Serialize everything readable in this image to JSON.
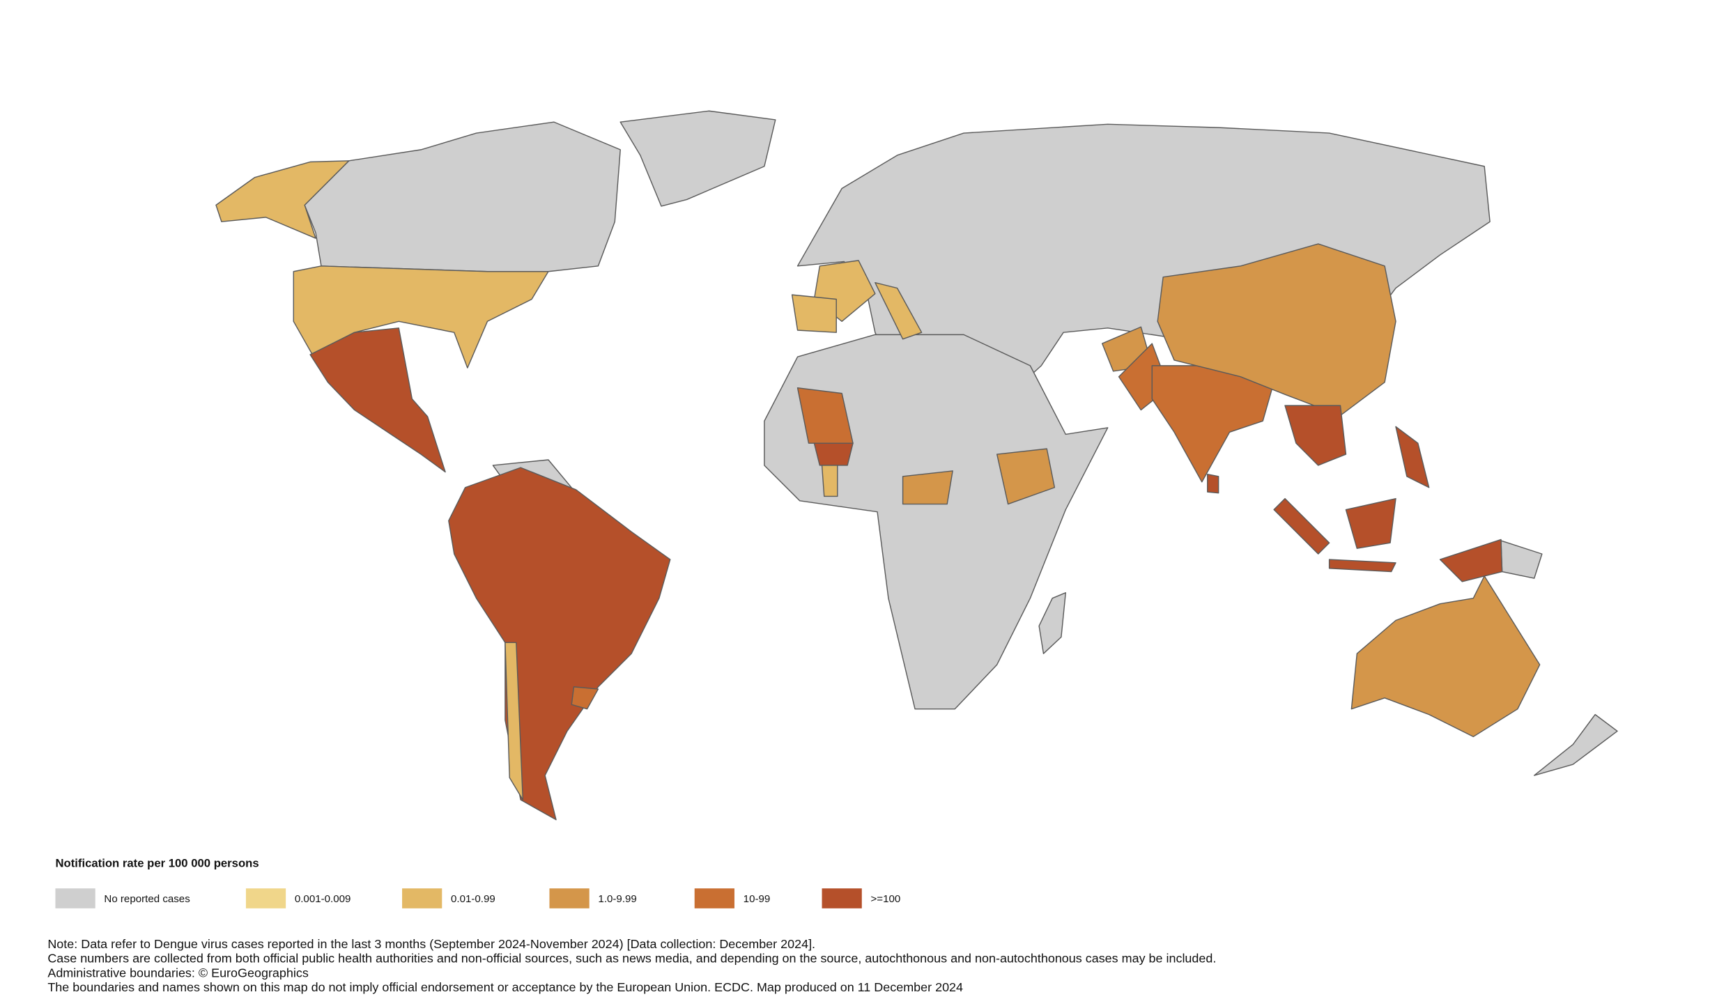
{
  "legend": {
    "title": "Notification rate per 100 000 persons",
    "items": [
      {
        "label": "No reported cases",
        "color": "#cfcfcf"
      },
      {
        "label": "0.001-0.009",
        "color": "#f0d68a"
      },
      {
        "label": "0.01-0.99",
        "color": "#e3b865"
      },
      {
        "label": "1.0-9.99",
        "color": "#d4964a"
      },
      {
        "label": "10-99",
        "color": "#c96f32"
      },
      {
        "label": ">=100",
        "color": "#b5502a"
      }
    ]
  },
  "notes": [
    "Note: Data refer to Dengue virus cases reported in the last 3 months (September 2024-November 2024) [Data collection: December 2024].",
    "Case numbers are collected from both official public health authorities and non-official sources, such as news media, and depending on the source, autochthonous and non-autochthonous cases may be included.",
    "Administrative boundaries: © EuroGeographics",
    "The boundaries and names shown on this map do not imply official endorsement or acceptance by the European Union. ECDC. Map produced on 11 December 2024"
  ]
}
